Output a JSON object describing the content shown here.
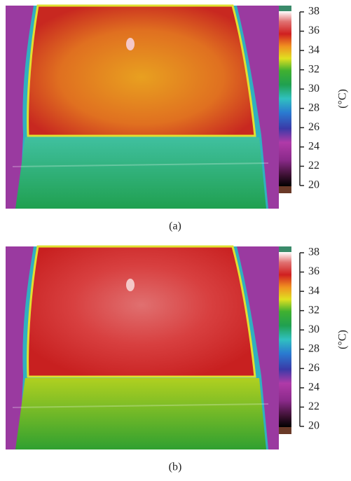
{
  "panels": [
    {
      "label": "(a)",
      "colorbar": {
        "ticks": [
          20,
          22,
          24,
          26,
          28,
          30,
          32,
          34,
          36,
          38
        ],
        "unit": "(°C)"
      }
    },
    {
      "label": "(b)",
      "colorbar": {
        "ticks": [
          20,
          22,
          24,
          26,
          28,
          30,
          32,
          34,
          36,
          38
        ],
        "unit": "(°C)"
      }
    }
  ]
}
